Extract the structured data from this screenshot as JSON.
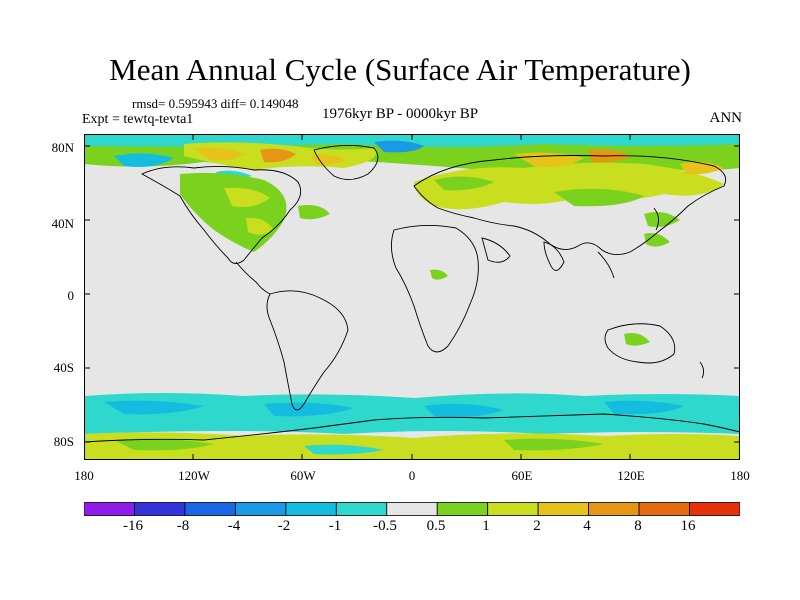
{
  "title": "Mean Annual Cycle (Surface Air Temperature)",
  "stats_line": "rmsd= 0.595943 diff= 0.149048",
  "experiment_line": "Expt = tewtq-tevta1",
  "period": "1976kyr BP - 0000kyr BP",
  "season": "ANN",
  "lat_ticks": [
    "80N",
    "40N",
    "0",
    "40S",
    "80S"
  ],
  "lon_ticks": [
    "180",
    "120W",
    "60W",
    "0",
    "60E",
    "120E",
    "180"
  ],
  "colorbar": {
    "labels": [
      "-16",
      "-8",
      "-4",
      "-2",
      "-1",
      "-0.5",
      "0.5",
      "1",
      "2",
      "4",
      "8",
      "16"
    ],
    "colors": [
      "#8c1ee8",
      "#3333dd",
      "#1a66e6",
      "#1a99e6",
      "#14bde0",
      "#2ed8cc",
      "#e6e6e6",
      "#7ad21e",
      "#c8de1e",
      "#e6c31a",
      "#e69614",
      "#e66b10",
      "#e6320a"
    ]
  }
}
